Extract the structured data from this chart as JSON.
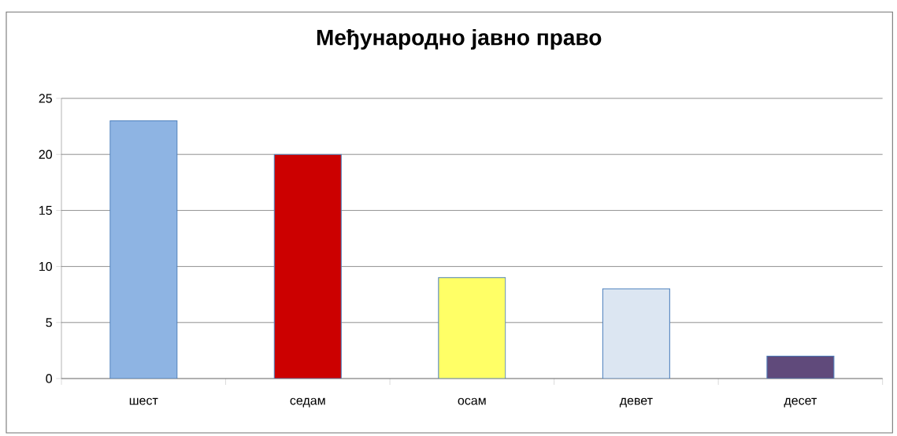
{
  "chart_data": {
    "type": "bar",
    "title": "Међународно јавно право",
    "categories": [
      "шест",
      "седам",
      "осам",
      "девет",
      "десет"
    ],
    "values": [
      23,
      20,
      9,
      8,
      2
    ],
    "colors": [
      "#8eb4e3",
      "#cc0000",
      "#ffff66",
      "#dce6f2",
      "#604a7b"
    ],
    "ylim": [
      0,
      25
    ],
    "yticks": [
      0,
      5,
      10,
      15,
      20,
      25
    ],
    "grid": "y"
  }
}
